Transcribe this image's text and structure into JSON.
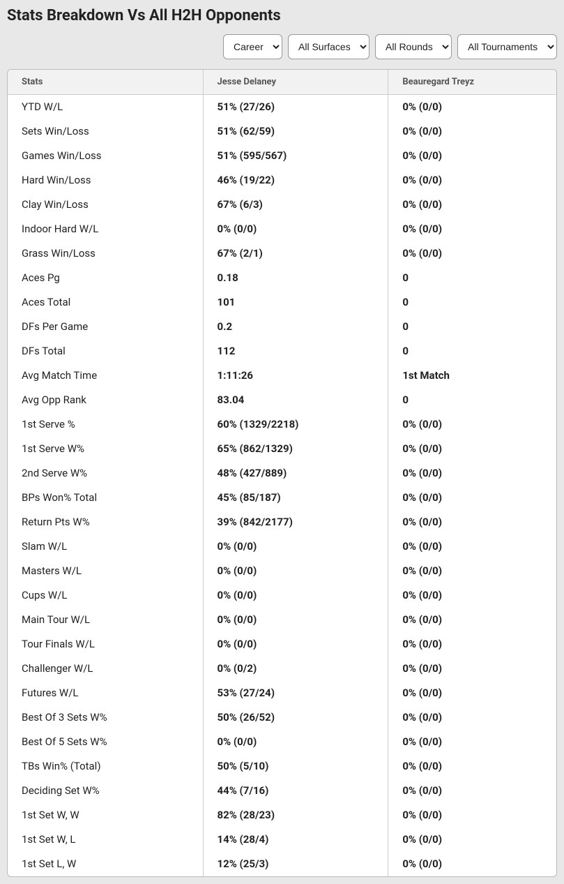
{
  "title": "Stats Breakdown Vs All H2H Opponents",
  "filters": {
    "period": "Career",
    "surface": "All Surfaces",
    "round": "All Rounds",
    "tournament": "All Tournaments"
  },
  "table": {
    "columns": [
      "Stats",
      "Jesse Delaney",
      "Beauregard Treyz"
    ],
    "rows": [
      [
        "YTD W/L",
        "51% (27/26)",
        "0% (0/0)"
      ],
      [
        "Sets Win/Loss",
        "51% (62/59)",
        "0% (0/0)"
      ],
      [
        "Games Win/Loss",
        "51% (595/567)",
        "0% (0/0)"
      ],
      [
        "Hard Win/Loss",
        "46% (19/22)",
        "0% (0/0)"
      ],
      [
        "Clay Win/Loss",
        "67% (6/3)",
        "0% (0/0)"
      ],
      [
        "Indoor Hard W/L",
        "0% (0/0)",
        "0% (0/0)"
      ],
      [
        "Grass Win/Loss",
        "67% (2/1)",
        "0% (0/0)"
      ],
      [
        "Aces Pg",
        "0.18",
        "0"
      ],
      [
        "Aces Total",
        "101",
        "0"
      ],
      [
        "DFs Per Game",
        "0.2",
        "0"
      ],
      [
        "DFs Total",
        "112",
        "0"
      ],
      [
        "Avg Match Time",
        "1:11:26",
        "1st Match"
      ],
      [
        "Avg Opp Rank",
        "83.04",
        "0"
      ],
      [
        "1st Serve %",
        "60% (1329/2218)",
        "0% (0/0)"
      ],
      [
        "1st Serve W%",
        "65% (862/1329)",
        "0% (0/0)"
      ],
      [
        "2nd Serve W%",
        "48% (427/889)",
        "0% (0/0)"
      ],
      [
        "BPs Won% Total",
        "45% (85/187)",
        "0% (0/0)"
      ],
      [
        "Return Pts W%",
        "39% (842/2177)",
        "0% (0/0)"
      ],
      [
        "Slam W/L",
        "0% (0/0)",
        "0% (0/0)"
      ],
      [
        "Masters W/L",
        "0% (0/0)",
        "0% (0/0)"
      ],
      [
        "Cups W/L",
        "0% (0/0)",
        "0% (0/0)"
      ],
      [
        "Main Tour W/L",
        "0% (0/0)",
        "0% (0/0)"
      ],
      [
        "Tour Finals W/L",
        "0% (0/0)",
        "0% (0/0)"
      ],
      [
        "Challenger W/L",
        "0% (0/2)",
        "0% (0/0)"
      ],
      [
        "Futures W/L",
        "53% (27/24)",
        "0% (0/0)"
      ],
      [
        "Best Of 3 Sets W%",
        "50% (26/52)",
        "0% (0/0)"
      ],
      [
        "Best Of 5 Sets W%",
        "0% (0/0)",
        "0% (0/0)"
      ],
      [
        "TBs Win% (Total)",
        "50% (5/10)",
        "0% (0/0)"
      ],
      [
        "Deciding Set W%",
        "44% (7/16)",
        "0% (0/0)"
      ],
      [
        "1st Set W, W",
        "82% (28/23)",
        "0% (0/0)"
      ],
      [
        "1st Set W, L",
        "14% (28/4)",
        "0% (0/0)"
      ],
      [
        "1st Set L, W",
        "12% (25/3)",
        "0% (0/0)"
      ]
    ]
  },
  "styling": {
    "page_bg": "#e8e8e8",
    "table_bg": "#ffffff",
    "header_bg": "#f2f2f2",
    "border": "#cccccc",
    "title_fontsize": 22,
    "header_fontsize": 13,
    "cell_fontsize": 15
  }
}
